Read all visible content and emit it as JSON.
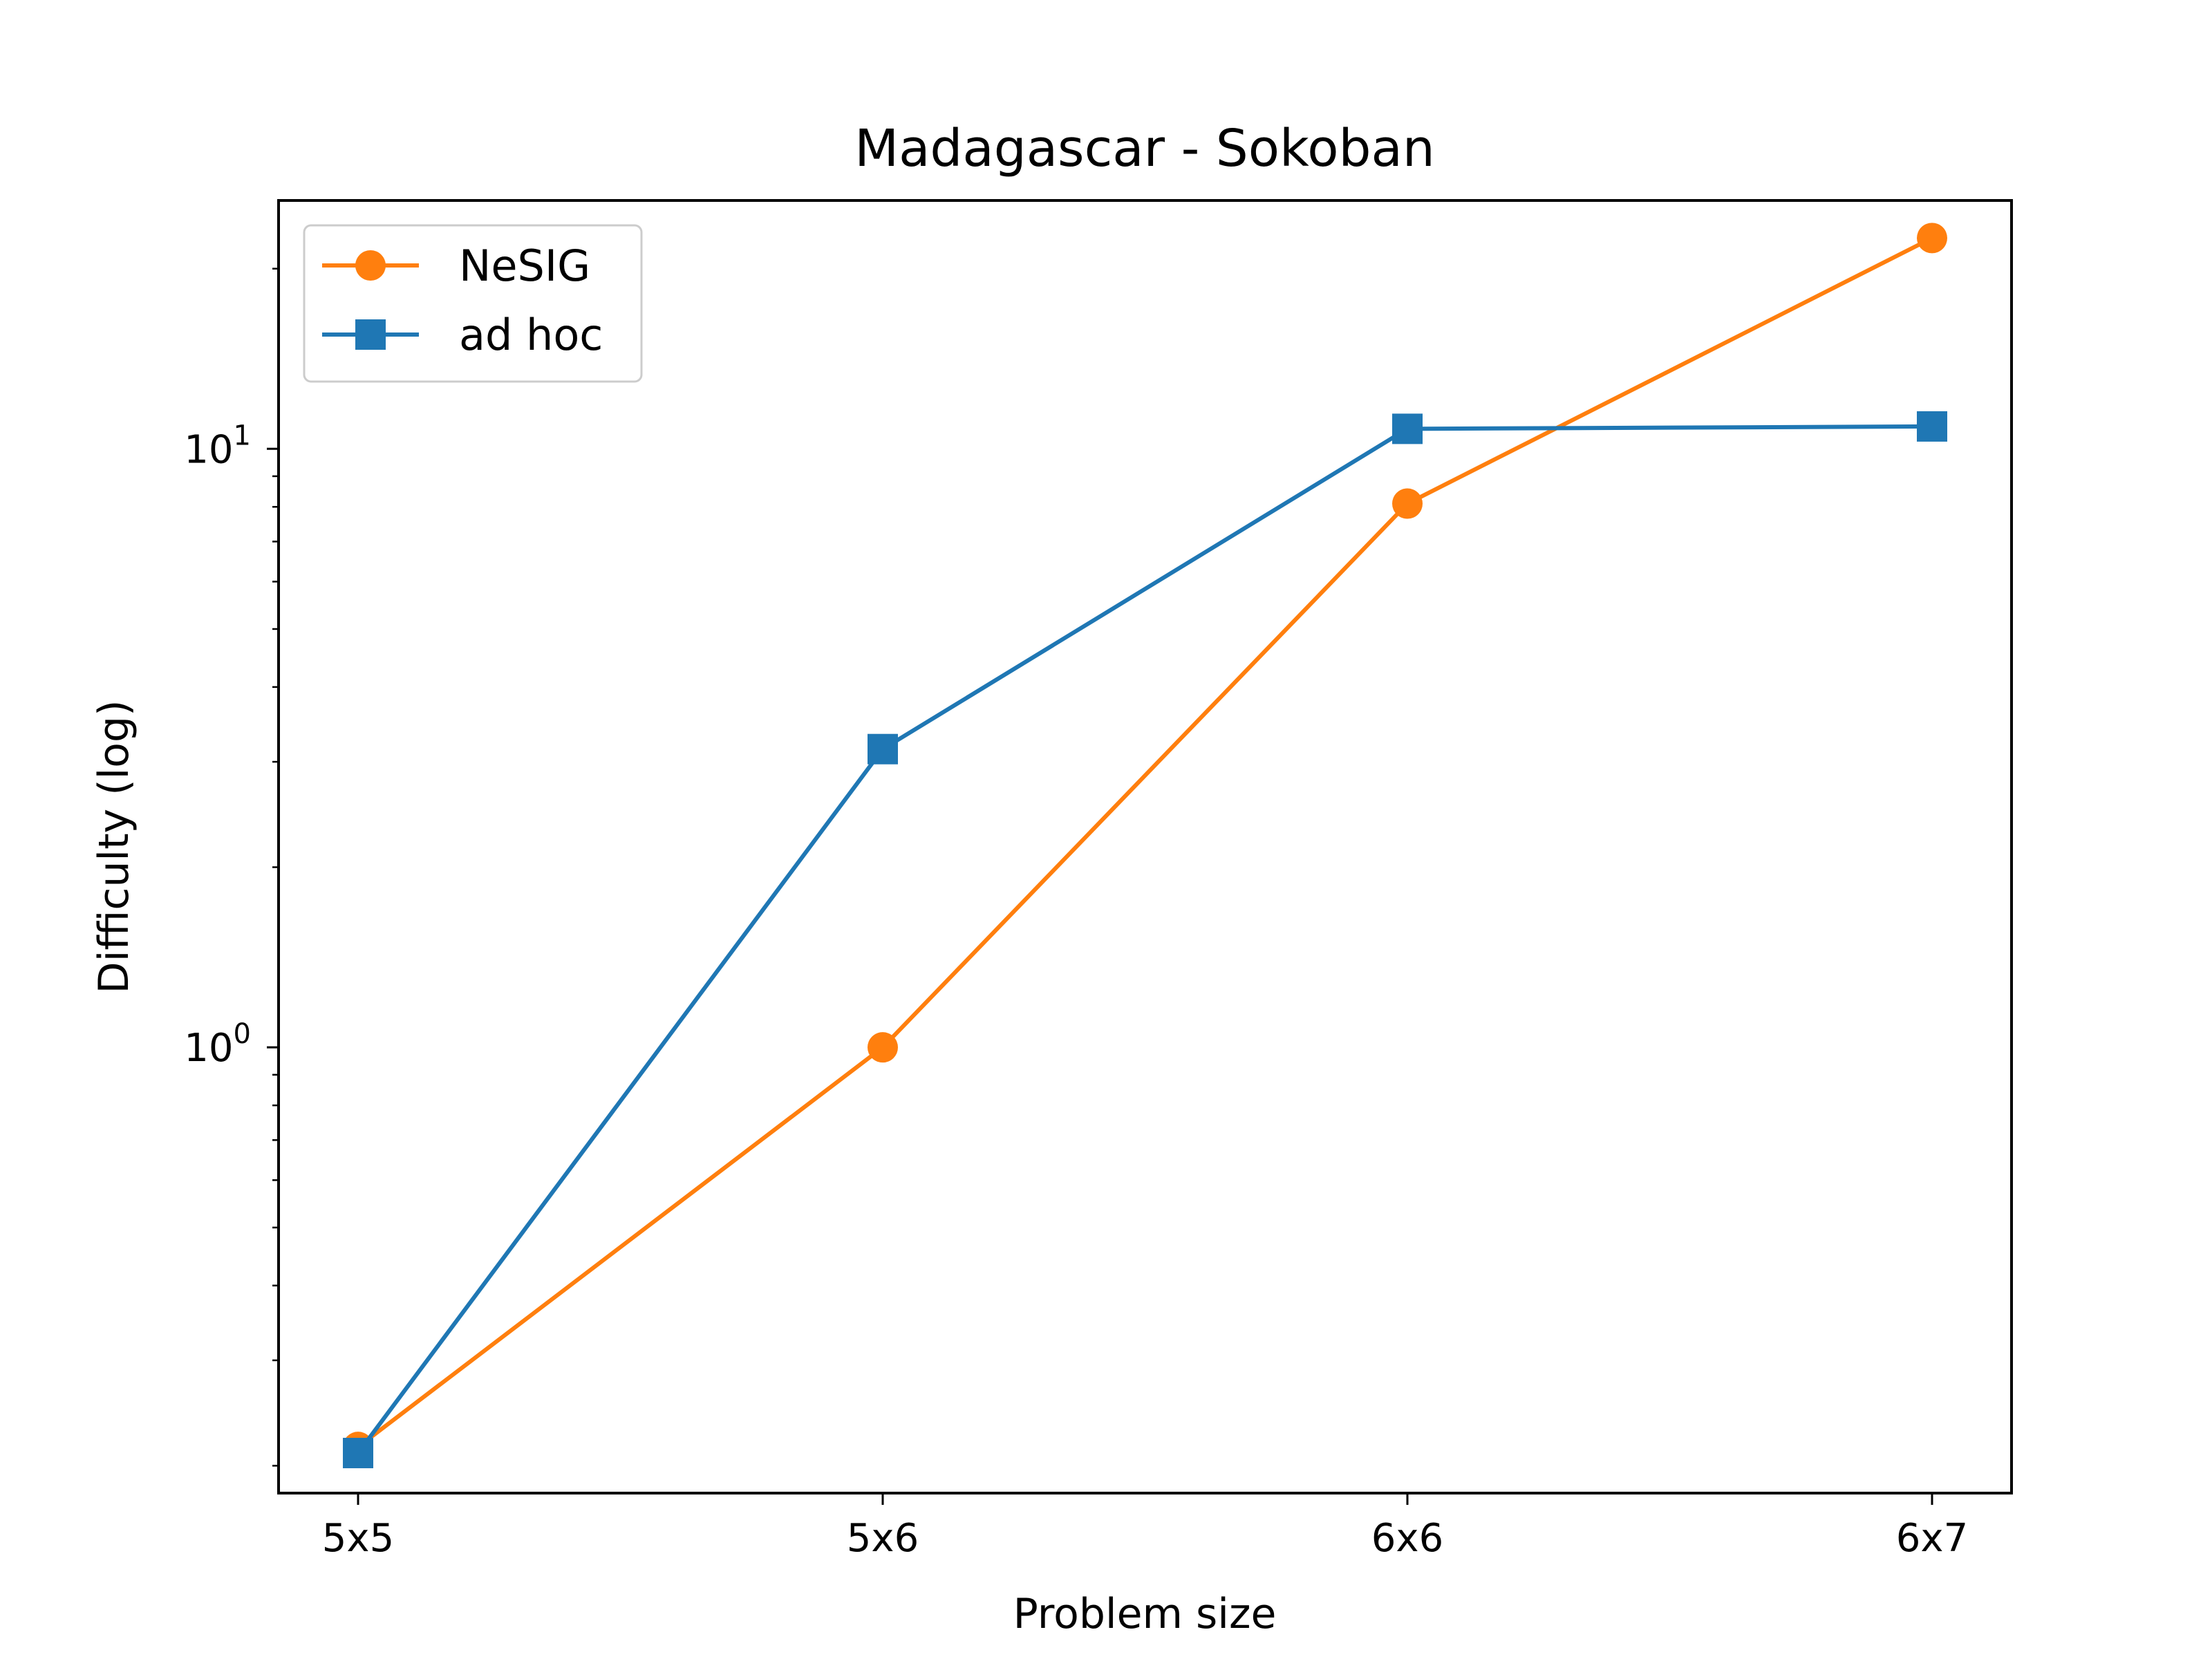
{
  "chart_data": {
    "type": "line",
    "title": "Madagascar - Sokoban",
    "xlabel": "Problem size",
    "ylabel": "Difficulty (log)",
    "categories": [
      "5x5",
      "5x6",
      "6x6",
      "6x7"
    ],
    "yscale": "log",
    "ylim": [
      0.18,
      26
    ],
    "yticks": [
      {
        "value": 1,
        "base": "10",
        "exp": "0"
      },
      {
        "value": 10,
        "base": "10",
        "exp": "1"
      }
    ],
    "legend_position": "upper-left",
    "grid": false,
    "series": [
      {
        "name": "NeSIG",
        "color": "#ff7f0e",
        "marker": "circle",
        "values": [
          0.215,
          1.0,
          8.1,
          22.5
        ]
      },
      {
        "name": "ad hoc",
        "color": "#1f77b4",
        "marker": "square",
        "values": [
          0.21,
          3.15,
          10.8,
          10.9
        ]
      }
    ]
  }
}
